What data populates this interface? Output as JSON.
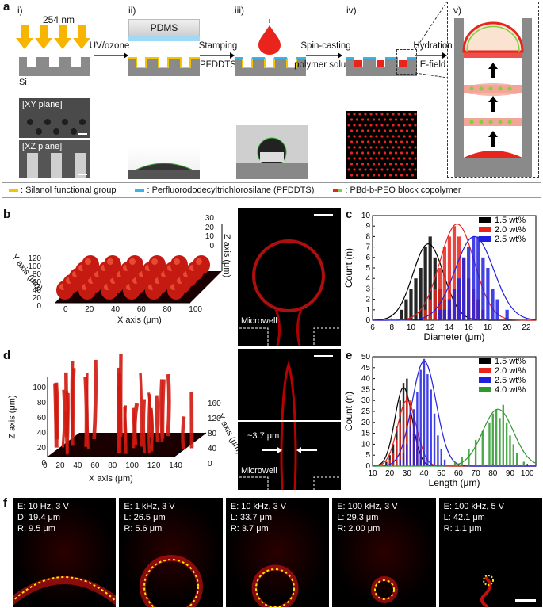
{
  "panel_labels": {
    "a": "a",
    "b": "b",
    "c": "c",
    "d": "d",
    "e": "e",
    "f": "f"
  },
  "roman": [
    "i)",
    "ii)",
    "iii)",
    "iv)",
    "v)"
  ],
  "panel_a": {
    "uv": "254 nm",
    "si": "Si",
    "pdms": "PDMS",
    "step1": "UV/ozone",
    "step2_a": "Stamping",
    "step2_b": "PFDDTS",
    "step3_a": "Spin-casting",
    "step3_b": "polymer solution",
    "step4_a": "Hydration",
    "step4_b": "E-field",
    "xy": "[XY plane]",
    "xz": "[XZ plane]",
    "legend": [
      {
        "text": ": Silanol functional group",
        "color": "#f5c400"
      },
      {
        "text": ": Perfluorododecyltrichlorosilane (PFDDTS)",
        "color": "#35b6e8"
      },
      {
        "text": ": PBd-b-PEO block copolymer",
        "color": "#e8241d"
      }
    ],
    "legend_pbd_second_color": "#7dd23c"
  },
  "panel_b": {
    "zaxis": "Z axis (μm)",
    "yaxis": "Y axis (μm)",
    "xaxis": "X axis (μm)",
    "z_ticks": [
      "30",
      "20",
      "10",
      "0"
    ],
    "y_ticks": [
      "120",
      "100",
      "80",
      "60",
      "40",
      "20",
      "0"
    ],
    "x_ticks": [
      "0",
      "20",
      "40",
      "60",
      "80",
      "100"
    ],
    "microwell": "Microwell"
  },
  "panel_d": {
    "zaxis": "Z axis (μm)",
    "yaxis": "Y axis (μm)",
    "xaxis": "X axis (μm)",
    "z_ticks": [
      "100",
      "80",
      "60",
      "40",
      "20",
      "0"
    ],
    "y_ticks": [
      "160",
      "120",
      "80",
      "40",
      "0"
    ],
    "x_ticks": [
      "0",
      "20",
      "40",
      "60",
      "80",
      "100",
      "120",
      "140"
    ],
    "width_label": "~3.7 μm",
    "microwell": "Microwell"
  },
  "panel_f": [
    {
      "l1": "E: 10 Hz, 3 V",
      "l2": "D: 19.4 μm",
      "l3": "R: 9.5 μm"
    },
    {
      "l1": "E: 1 kHz, 3 V",
      "l2": "L: 26.5 μm",
      "l3": "R: 5.6 μm"
    },
    {
      "l1": "E: 10 kHz, 3 V",
      "l2": "L: 33.7 μm",
      "l3": "R: 3.7 μm"
    },
    {
      "l1": "E: 100 kHz, 3 V",
      "l2": "L: 29.3 μm",
      "l3": "R: 2.00 μm"
    },
    {
      "l1": "E: 100 kHz, 5 V",
      "l2": "L: 42.1 μm",
      "l3": "R: 1.1 μm"
    }
  ],
  "chart_data": [
    {
      "type": "bar",
      "xlabel": "Diameter (μm)",
      "ylabel": "Count (n)",
      "xlim": [
        6,
        23
      ],
      "ylim": [
        0,
        10
      ],
      "xticks": [
        6,
        8,
        10,
        12,
        14,
        16,
        18,
        20,
        22
      ],
      "yticks": [
        0,
        1,
        2,
        3,
        4,
        5,
        6,
        7,
        8,
        9,
        10
      ],
      "legend_position": "top-right",
      "series": [
        {
          "name": "1.5 wt%",
          "color": "#000000",
          "x": [
            9,
            9.5,
            10,
            10.5,
            11,
            11.5,
            12,
            12.5,
            13,
            13.5,
            14
          ],
          "values": [
            1,
            2,
            3,
            4,
            5,
            7,
            8,
            6,
            3,
            2,
            1
          ],
          "fit_mu": 11.8,
          "fit_sigma": 1.6,
          "fit_peak": 7.3
        },
        {
          "name": "2.0 wt%",
          "color": "#e8241d",
          "x": [
            11.5,
            12,
            12.5,
            13,
            13.5,
            14,
            14.5,
            15,
            15.5,
            16,
            16.5,
            17,
            17.5
          ],
          "values": [
            1,
            2,
            3,
            5,
            7,
            8,
            9,
            8,
            6,
            4,
            3,
            2,
            1
          ],
          "fit_mu": 14.8,
          "fit_sigma": 1.8,
          "fit_peak": 9.2
        },
        {
          "name": "2.5 wt%",
          "color": "#2020e0",
          "x": [
            13,
            13.5,
            14,
            14.5,
            15,
            15.5,
            16,
            16.5,
            17,
            17.5,
            18,
            18.5,
            19,
            20
          ],
          "values": [
            1,
            1,
            2,
            3,
            4,
            6,
            7,
            8,
            8,
            6,
            5,
            3,
            2,
            1
          ],
          "fit_mu": 16.6,
          "fit_sigma": 2.0,
          "fit_peak": 8.0
        }
      ]
    },
    {
      "type": "bar",
      "xlabel": "Length (μm)",
      "ylabel": "Count (n)",
      "xlim": [
        10,
        105
      ],
      "ylim": [
        0,
        50
      ],
      "xticks": [
        10,
        20,
        30,
        40,
        50,
        60,
        70,
        80,
        90,
        100
      ],
      "yticks": [
        0,
        5,
        10,
        15,
        20,
        25,
        30,
        35,
        40,
        45,
        50
      ],
      "legend_position": "top-right",
      "series": [
        {
          "name": "1.5 wt%",
          "color": "#000000",
          "x": [
            18,
            20,
            22,
            24,
            26,
            28,
            30,
            32,
            34,
            36,
            38
          ],
          "values": [
            2,
            5,
            10,
            18,
            30,
            38,
            40,
            28,
            15,
            8,
            3
          ],
          "fit_mu": 28,
          "fit_sigma": 5,
          "fit_peak": 36
        },
        {
          "name": "2.0 wt%",
          "color": "#e8241d",
          "x": [
            20,
            22,
            24,
            26,
            28,
            30,
            32,
            34,
            36,
            38,
            40
          ],
          "values": [
            3,
            6,
            12,
            20,
            28,
            32,
            30,
            22,
            14,
            8,
            3
          ],
          "fit_mu": 30,
          "fit_sigma": 5.5,
          "fit_peak": 30
        },
        {
          "name": "2.5 wt%",
          "color": "#2020e0",
          "x": [
            26,
            28,
            30,
            32,
            34,
            36,
            38,
            40,
            42,
            44,
            46,
            48,
            50,
            52
          ],
          "values": [
            3,
            6,
            10,
            18,
            26,
            34,
            44,
            49,
            42,
            35,
            24,
            14,
            8,
            3
          ],
          "fit_mu": 40,
          "fit_sigma": 7,
          "fit_peak": 48
        },
        {
          "name": "4.0 wt%",
          "color": "#2e9a2e",
          "x": [
            58,
            62,
            66,
            70,
            74,
            78,
            80,
            82,
            84,
            86,
            88,
            90,
            92,
            94,
            98
          ],
          "values": [
            2,
            4,
            8,
            12,
            16,
            20,
            24,
            26,
            22,
            28,
            20,
            14,
            10,
            6,
            2
          ],
          "fit_mu": 83,
          "fit_sigma": 9,
          "fit_peak": 26
        }
      ]
    }
  ]
}
